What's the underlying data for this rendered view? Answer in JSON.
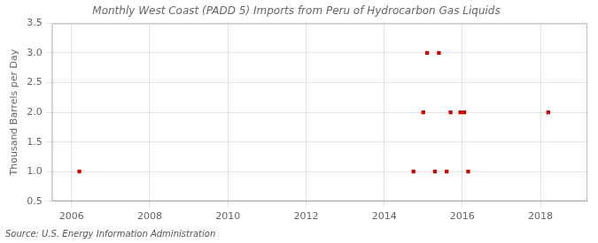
{
  "chart_data": {
    "type": "scatter",
    "title": "Monthly West Coast (PADD 5) Imports from Peru of Hydrocarbon Gas Liquids",
    "ylabel": "Thousand Barrels per Day",
    "source": "Source: U.S. Energy Information Administration",
    "x": [
      2006.2,
      2014.75,
      2015.0,
      2015.1,
      2015.3,
      2015.4,
      2015.6,
      2015.7,
      2015.95,
      2016.05,
      2016.15,
      2018.2
    ],
    "values": [
      1.0,
      1.0,
      2.0,
      3.0,
      1.0,
      3.0,
      1.0,
      2.0,
      2.0,
      2.0,
      1.0,
      2.0
    ],
    "color": "#cc0000",
    "marker": "square",
    "xlim": [
      2005.5,
      2019.2
    ],
    "ylim": [
      0.5,
      3.5
    ],
    "xticks": [
      2006,
      2008,
      2010,
      2012,
      2014,
      2016,
      2018
    ],
    "yticks": [
      0.5,
      {
        "value": 1,
        "label": "1.0"
      },
      1.5,
      {
        "value": 2,
        "label": "2.0"
      },
      2.5,
      {
        "value": 3,
        "label": "3.0"
      },
      3.5
    ],
    "grid": true
  }
}
